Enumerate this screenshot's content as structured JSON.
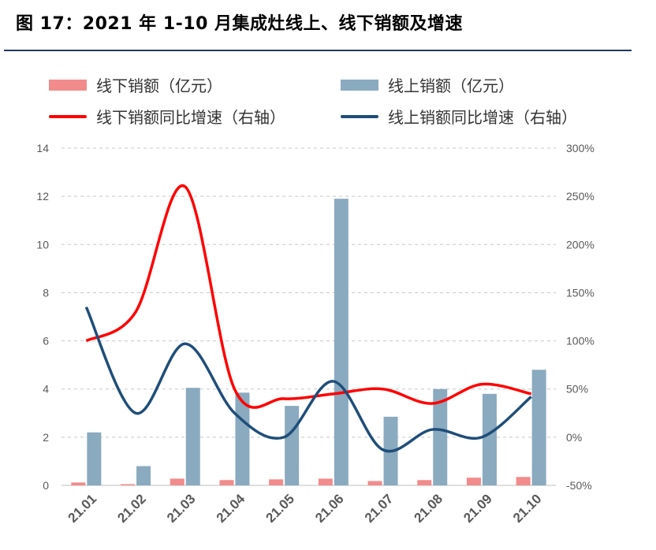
{
  "title": "图 17：2021 年 1-10 月集成灶线上、线下销额及增速",
  "chart_data": {
    "type": "bar",
    "categories": [
      "21.01",
      "21.02",
      "21.03",
      "21.04",
      "21.05",
      "21.06",
      "21.07",
      "21.08",
      "21.09",
      "21.10"
    ],
    "series": [
      {
        "name": "线下销额（亿元）",
        "type": "bar",
        "axis": "left",
        "color": "#f28b8b",
        "values": [
          0.12,
          0.05,
          0.28,
          0.22,
          0.25,
          0.28,
          0.18,
          0.22,
          0.32,
          0.35
        ]
      },
      {
        "name": "线上销额（亿元）",
        "type": "bar",
        "axis": "left",
        "color": "#8aaabf",
        "values": [
          2.2,
          0.8,
          4.05,
          3.85,
          3.3,
          11.9,
          2.85,
          4.0,
          3.8,
          4.8
        ]
      },
      {
        "name": "线下销额同比增速（右轴）",
        "type": "line",
        "axis": "right",
        "color": "#ff0000",
        "values": [
          100,
          130,
          260,
          50,
          40,
          45,
          50,
          35,
          55,
          45
        ]
      },
      {
        "name": "线上销额同比增速（右轴）",
        "type": "line",
        "axis": "right",
        "color": "#1f4e79",
        "values": [
          135,
          25,
          97,
          25,
          0,
          58,
          -13,
          8,
          0,
          42
        ]
      }
    ],
    "y_left": {
      "min": 0,
      "max": 14,
      "ticks": [
        "0",
        "2",
        "4",
        "6",
        "8",
        "10",
        "12",
        "14"
      ]
    },
    "y_right": {
      "min": -50,
      "max": 300,
      "ticks": [
        "-50%",
        "0%",
        "50%",
        "100%",
        "150%",
        "200%",
        "250%",
        "300%"
      ]
    },
    "grid": "horizontal dashed",
    "legend": "top"
  }
}
